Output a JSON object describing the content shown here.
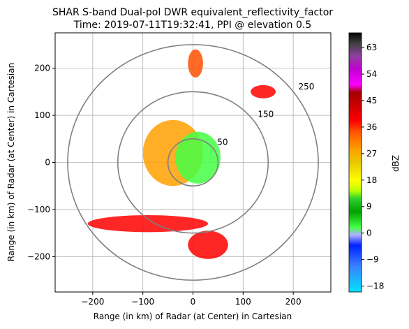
{
  "figure": {
    "title_line1": "SHAR S-band Dual-pol DWR equivalent_reflectivity_factor",
    "title_line2": "Time: 2019-07-11T19:32:41, PPI @ elevation 0.5"
  },
  "chart_data": {
    "type": "heatmap",
    "title": "SHAR S-band Dual-pol DWR equivalent_reflectivity_factor",
    "subtitle": "Time: 2019-07-11T19:32:41, PPI @ elevation 0.5",
    "xlabel": "Range (in km) of Radar (at Center) in Cartesian",
    "ylabel": "Range (in km) of Radar (at Center) in Cartesian",
    "xlim": [
      -275,
      275
    ],
    "ylim": [
      -275,
      275
    ],
    "x_ticks": [
      -200,
      -100,
      0,
      100,
      200
    ],
    "y_ticks": [
      -200,
      -100,
      0,
      100,
      200
    ],
    "x_tick_labels": [
      "−200",
      "−100",
      "0",
      "100",
      "200"
    ],
    "y_tick_labels": [
      "−200",
      "−100",
      "0",
      "100",
      "200"
    ],
    "grid": true,
    "range_rings": [
      {
        "radius": 50,
        "label": "50"
      },
      {
        "radius": 150,
        "label": "150"
      },
      {
        "radius": 250,
        "label": "250"
      }
    ],
    "colorbar": {
      "label": "dBZ",
      "min": -20,
      "max": 68,
      "ticks": [
        -18,
        -9,
        0,
        9,
        18,
        27,
        36,
        45,
        54,
        63
      ],
      "tick_labels": [
        "−18",
        "−9",
        "0",
        "9",
        "18",
        "27",
        "36",
        "45",
        "54",
        "63"
      ]
    },
    "echo_regions": [
      {
        "x": -40,
        "y": 20,
        "rx": 60,
        "ry": 70,
        "dbz": 30
      },
      {
        "x": 10,
        "y": 10,
        "rx": 45,
        "ry": 55,
        "dbz": 5
      },
      {
        "x": -90,
        "y": -130,
        "rx": 120,
        "ry": 18,
        "dbz": 40
      },
      {
        "x": 30,
        "y": -175,
        "rx": 40,
        "ry": 30,
        "dbz": 42
      },
      {
        "x": 140,
        "y": 150,
        "rx": 25,
        "ry": 14,
        "dbz": 38
      },
      {
        "x": 5,
        "y": 210,
        "rx": 15,
        "ry": 30,
        "dbz": 35
      }
    ]
  }
}
